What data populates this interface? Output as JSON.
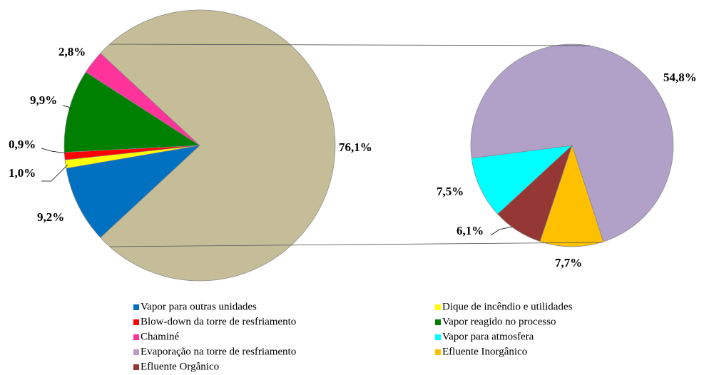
{
  "chart_data": {
    "type": "pie-of-pie",
    "categories": [
      "Vapor para outras unidades",
      "Dique de incêndio e utilidades",
      "Blow-down da torre de resfriamento",
      "Vapor reagido no processo",
      "Chaminé",
      "Vapor para atmosfera",
      "Evaporação na torre de resfriamento",
      "Efluente Inorgânico",
      "Efluente Orgânico"
    ],
    "values": [
      9.2,
      1.0,
      0.9,
      9.9,
      2.8,
      7.5,
      54.8,
      7.7,
      6.1
    ],
    "value_labels": [
      "9,2%",
      "1,0%",
      "0,9%",
      "9,9%",
      "2,8%",
      "7,5%",
      "54,8%",
      "7,7%",
      "6,1%"
    ],
    "colors": [
      "#0070c0",
      "#ffff00",
      "#ff0000",
      "#008000",
      "#ff3399",
      "#00ffff",
      "#b1a0c7",
      "#ffc000",
      "#953735"
    ],
    "secondary_count": 4,
    "other": {
      "value": 76.1,
      "value_label": "76,1%",
      "color": "#c4bd97"
    },
    "legend": "bottom"
  }
}
